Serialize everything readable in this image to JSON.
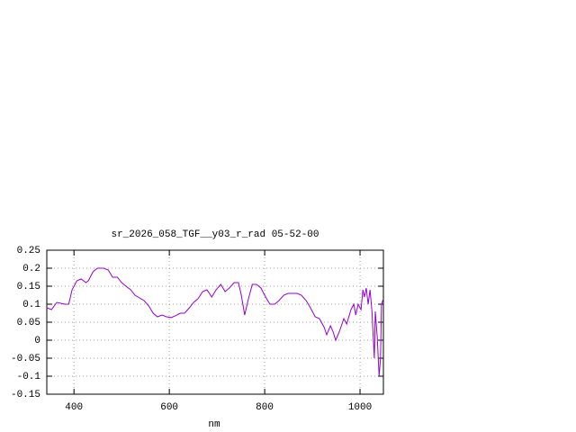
{
  "chart_data": {
    "type": "line",
    "title": "sr_2026_058_TGF__y03_r_rad 05-52-00",
    "x_label": "nm",
    "xlim": [
      343,
      1049
    ],
    "ylim": [
      -0.15,
      0.25
    ],
    "xticks": [
      400,
      600,
      800,
      1000
    ],
    "yticks": [
      0.25,
      0.2,
      0.15,
      0.1,
      0.05,
      0,
      -0.05,
      -0.1,
      -0.15
    ],
    "grid": true,
    "series": [
      {
        "color": "#9400d3",
        "x": [
          343,
          353,
          364,
          381,
          389,
          396,
          406,
          415,
          425,
          430,
          440,
          449,
          462,
          472,
          481,
          491,
          500,
          509,
          519,
          528,
          547,
          557,
          566,
          575,
          585,
          594,
          604,
          613,
          623,
          632,
          642,
          651,
          660,
          670,
          679,
          689,
          698,
          708,
          717,
          726,
          736,
          745,
          751,
          758,
          766,
          774,
          783,
          792,
          802,
          811,
          821,
          830,
          840,
          849,
          858,
          868,
          877,
          887,
          896,
          906,
          915,
          925,
          930,
          938,
          943,
          949,
          957,
          966,
          972,
          981,
          987,
          991,
          996,
          1002,
          1006,
          1009,
          1013,
          1017,
          1021,
          1025,
          1028,
          1030,
          1032,
          1036,
          1040,
          1043,
          1045,
          1049
        ],
        "values": [
          0.09,
          0.085,
          0.105,
          0.1,
          0.1,
          0.14,
          0.165,
          0.17,
          0.16,
          0.165,
          0.19,
          0.2,
          0.2,
          0.195,
          0.175,
          0.175,
          0.16,
          0.15,
          0.14,
          0.125,
          0.11,
          0.095,
          0.075,
          0.065,
          0.07,
          0.065,
          0.063,
          0.068,
          0.075,
          0.075,
          0.09,
          0.105,
          0.115,
          0.135,
          0.14,
          0.12,
          0.14,
          0.155,
          0.135,
          0.145,
          0.16,
          0.16,
          0.125,
          0.07,
          0.115,
          0.155,
          0.155,
          0.145,
          0.12,
          0.1,
          0.1,
          0.11,
          0.125,
          0.13,
          0.13,
          0.13,
          0.125,
          0.11,
          0.09,
          0.065,
          0.06,
          0.035,
          0.015,
          0.04,
          0.025,
          0.0,
          0.025,
          0.06,
          0.045,
          0.085,
          0.1,
          0.07,
          0.1,
          0.085,
          0.14,
          0.12,
          0.145,
          0.1,
          0.14,
          0.08,
          0.0,
          -0.05,
          0.08,
          0.01,
          -0.1,
          -0.05,
          0.1,
          0.115
        ]
      }
    ]
  }
}
